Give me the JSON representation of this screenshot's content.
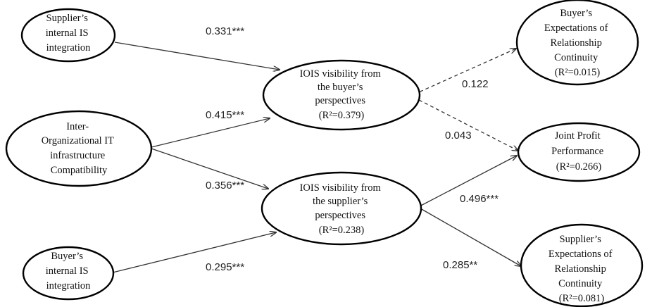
{
  "nodes": {
    "supplier_internal_is": {
      "lines": [
        "Supplier’s",
        "internal IS",
        "integration"
      ]
    },
    "inter_org_it": {
      "lines": [
        "Inter-",
        "Organizational IT",
        "infrastructure",
        "Compatibility"
      ]
    },
    "buyer_internal_is": {
      "lines": [
        "Buyer’s",
        "internal IS",
        "integration"
      ]
    },
    "ioisvis_buyer": {
      "lines": [
        "IOIS visibility from",
        "the buyer’s",
        "perspectives",
        "(R²=0.379)"
      ]
    },
    "ioisvis_supplier": {
      "lines": [
        "IOIS visibility from",
        "the supplier’s",
        "perspectives",
        "(R²=0.238)"
      ]
    },
    "buyer_expectations": {
      "lines": [
        "Buyer’s",
        "Expectations of",
        "Relationship",
        "Continuity",
        "(R²=0.015)"
      ]
    },
    "joint_profit": {
      "lines": [
        "Joint Profit",
        "Performance",
        "(R²=0.266)"
      ]
    },
    "supplier_expectations": {
      "lines": [
        "Supplier’s",
        "Expectations of",
        "Relationship",
        "Continuity",
        "(R²=0.081)"
      ]
    }
  },
  "edges": {
    "e1": {
      "from": "supplier_internal_is",
      "to": "ioisvis_buyer",
      "coef": "0.331***",
      "style": "solid"
    },
    "e2": {
      "from": "inter_org_it",
      "to": "ioisvis_buyer",
      "coef": "0.415***",
      "style": "solid"
    },
    "e3": {
      "from": "inter_org_it",
      "to": "ioisvis_supplier",
      "coef": "0.356***",
      "style": "solid"
    },
    "e4": {
      "from": "buyer_internal_is",
      "to": "ioisvis_supplier",
      "coef": "0.295***",
      "style": "solid"
    },
    "e5": {
      "from": "ioisvis_buyer",
      "to": "buyer_expectations",
      "coef": "0.122",
      "style": "dashed"
    },
    "e6": {
      "from": "ioisvis_buyer",
      "to": "joint_profit",
      "coef": "0.043",
      "style": "dashed"
    },
    "e7": {
      "from": "ioisvis_supplier",
      "to": "joint_profit",
      "coef": "0.496***",
      "style": "solid"
    },
    "e8": {
      "from": "ioisvis_supplier",
      "to": "supplier_expectations",
      "coef": "0.285**",
      "style": "solid"
    }
  },
  "colors": {
    "ellipse_stroke": "#000000",
    "line": "#333333",
    "text": "#111111"
  }
}
